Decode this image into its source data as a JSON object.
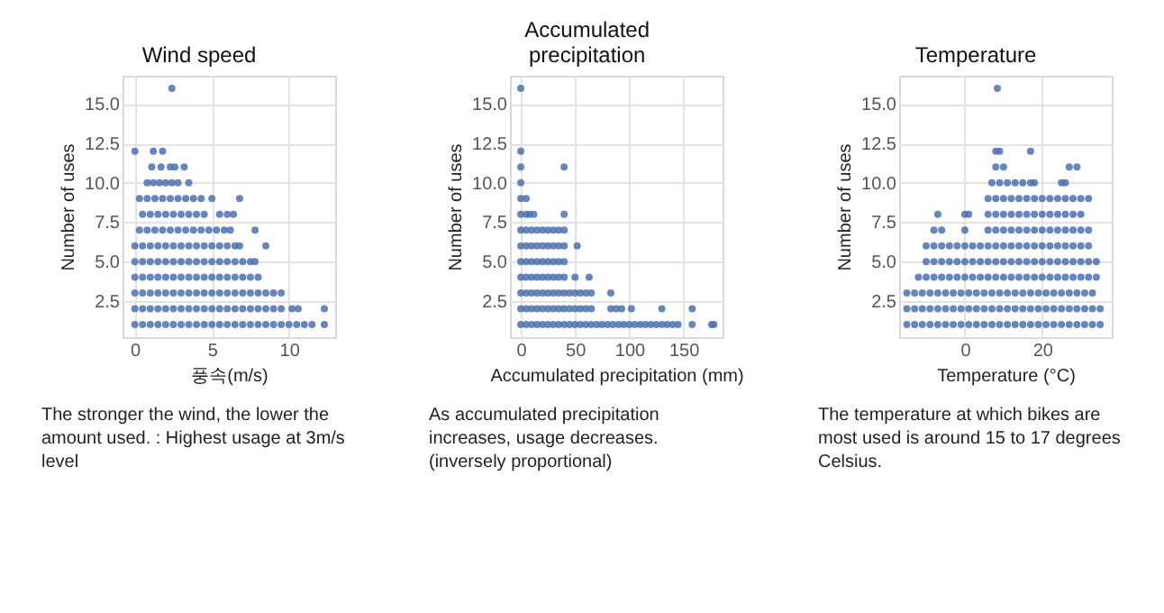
{
  "chart_data": [
    {
      "type": "scatter",
      "title": "Wind speed",
      "xlabel": "풍속(m/s)",
      "ylabel": "Number of uses",
      "color": "#4c72b0",
      "marker": "circle",
      "grid": true,
      "xlim": [
        -0.8,
        13
      ],
      "xticks": [
        0,
        5,
        10
      ],
      "ylim": [
        0.2,
        16.8
      ],
      "yticks": [
        {
          "value": 2.5,
          "label": "2.5"
        },
        {
          "value": 5,
          "label": "5.0"
        },
        {
          "value": 7.5,
          "label": "7.5"
        },
        {
          "value": 10,
          "label": "10.0"
        },
        {
          "value": 12.5,
          "label": "12.5"
        },
        {
          "value": 15,
          "label": "15.0"
        }
      ],
      "x": [
        0,
        0.5,
        1,
        1.5,
        2,
        2.5,
        3,
        3.5,
        4,
        4.5,
        5,
        5.5,
        6,
        6.5,
        7,
        7.5,
        8,
        8.5,
        9,
        9.5,
        10,
        10.5,
        11,
        11.5,
        12.3,
        0,
        0.5,
        1,
        1.5,
        2,
        2.5,
        3,
        3.5,
        4,
        4.5,
        5,
        5.5,
        6,
        6.5,
        7,
        7.5,
        8,
        8.5,
        9,
        9.5,
        10.2,
        10.6,
        12.3,
        0,
        0.5,
        1,
        1.5,
        2,
        2.5,
        3,
        3.5,
        4,
        4.5,
        5,
        5.5,
        6,
        6.5,
        7,
        7.5,
        8,
        8.5,
        9,
        9.5,
        0,
        0.5,
        1,
        1.5,
        2,
        2.5,
        3,
        3.5,
        4,
        4.5,
        5,
        5.5,
        6,
        6.5,
        7,
        7.5,
        8,
        0,
        0.5,
        1,
        1.5,
        2,
        2.5,
        3,
        3.5,
        4,
        4.5,
        5,
        5.5,
        6,
        6.5,
        7,
        7.5,
        7.8,
        0,
        0.5,
        1,
        1.5,
        2,
        2.5,
        3,
        3.5,
        4,
        4.5,
        5,
        5.5,
        6,
        6.5,
        6.8,
        8.5,
        0.3,
        0.8,
        1.3,
        1.8,
        2.3,
        2.8,
        3.3,
        3.8,
        4.3,
        4.8,
        5.3,
        5.8,
        6.2,
        7.8,
        0.5,
        1,
        1.5,
        2,
        2.5,
        3,
        3.5,
        4,
        4.5,
        5.5,
        6,
        6.4,
        0.3,
        0.8,
        1.3,
        1.8,
        2.3,
        2.8,
        3.3,
        3.8,
        4.3,
        5,
        6.8,
        0.8,
        1.2,
        1.6,
        2,
        2.4,
        2.8,
        3.5,
        1.1,
        1.7,
        2.3,
        2.6,
        3.2,
        0,
        1.2,
        1.8,
        2.4
      ],
      "values": [
        1,
        1,
        1,
        1,
        1,
        1,
        1,
        1,
        1,
        1,
        1,
        1,
        1,
        1,
        1,
        1,
        1,
        1,
        1,
        1,
        1,
        1,
        1,
        1,
        1,
        2,
        2,
        2,
        2,
        2,
        2,
        2,
        2,
        2,
        2,
        2,
        2,
        2,
        2,
        2,
        2,
        2,
        2,
        2,
        2,
        2,
        2,
        2,
        3,
        3,
        3,
        3,
        3,
        3,
        3,
        3,
        3,
        3,
        3,
        3,
        3,
        3,
        3,
        3,
        3,
        3,
        3,
        3,
        4,
        4,
        4,
        4,
        4,
        4,
        4,
        4,
        4,
        4,
        4,
        4,
        4,
        4,
        4,
        4,
        4,
        5,
        5,
        5,
        5,
        5,
        5,
        5,
        5,
        5,
        5,
        5,
        5,
        5,
        5,
        5,
        5,
        5,
        6,
        6,
        6,
        6,
        6,
        6,
        6,
        6,
        6,
        6,
        6,
        6,
        6,
        6,
        6,
        6,
        7,
        7,
        7,
        7,
        7,
        7,
        7,
        7,
        7,
        7,
        7,
        7,
        7,
        7,
        8,
        8,
        8,
        8,
        8,
        8,
        8,
        8,
        8,
        8,
        8,
        8,
        9,
        9,
        9,
        9,
        9,
        9,
        9,
        9,
        9,
        9,
        9,
        10,
        10,
        10,
        10,
        10,
        10,
        10,
        11,
        11,
        11,
        11,
        11,
        12,
        12,
        12,
        16
      ],
      "annotations": [
        "The stronger the wind, the lower the amount used. : Highest usage at 3m/s level"
      ]
    },
    {
      "type": "scatter",
      "title": "Accumulated precipitation",
      "xlabel": "Accumulated precipitation  (mm)",
      "ylabel": "Number of uses",
      "color": "#4c72b0",
      "marker": "circle",
      "grid": true,
      "xlim": [
        -10,
        186
      ],
      "xticks": [
        0,
        50,
        100,
        150
      ],
      "ylim": [
        0.2,
        16.8
      ],
      "yticks": [
        {
          "value": 2.5,
          "label": "2.5"
        },
        {
          "value": 5,
          "label": "5.0"
        },
        {
          "value": 7.5,
          "label": "7.5"
        },
        {
          "value": 10,
          "label": "10.0"
        },
        {
          "value": 12.5,
          "label": "12.5"
        },
        {
          "value": 15,
          "label": "15.0"
        }
      ],
      "x": [
        0,
        5,
        10,
        15,
        20,
        25,
        30,
        35,
        40,
        45,
        50,
        55,
        60,
        65,
        70,
        75,
        80,
        85,
        90,
        95,
        100,
        105,
        110,
        115,
        120,
        125,
        130,
        135,
        140,
        145,
        158,
        176,
        178,
        0,
        5,
        10,
        15,
        20,
        25,
        30,
        35,
        40,
        45,
        50,
        55,
        60,
        65,
        83,
        88,
        93,
        102,
        130,
        158,
        0,
        5,
        10,
        15,
        20,
        25,
        30,
        35,
        40,
        45,
        50,
        55,
        60,
        65,
        83,
        0,
        5,
        10,
        15,
        20,
        25,
        30,
        35,
        40,
        50,
        63,
        0,
        5,
        10,
        15,
        20,
        25,
        30,
        35,
        40,
        0,
        5,
        10,
        15,
        20,
        25,
        30,
        35,
        40,
        52,
        0,
        5,
        10,
        15,
        20,
        25,
        30,
        35,
        40,
        0,
        5,
        8,
        12,
        40,
        0,
        5,
        0,
        0,
        40,
        0,
        0
      ],
      "values": [
        1,
        1,
        1,
        1,
        1,
        1,
        1,
        1,
        1,
        1,
        1,
        1,
        1,
        1,
        1,
        1,
        1,
        1,
        1,
        1,
        1,
        1,
        1,
        1,
        1,
        1,
        1,
        1,
        1,
        1,
        1,
        1,
        1,
        2,
        2,
        2,
        2,
        2,
        2,
        2,
        2,
        2,
        2,
        2,
        2,
        2,
        2,
        2,
        2,
        2,
        2,
        2,
        2,
        3,
        3,
        3,
        3,
        3,
        3,
        3,
        3,
        3,
        3,
        3,
        3,
        3,
        3,
        3,
        4,
        4,
        4,
        4,
        4,
        4,
        4,
        4,
        4,
        4,
        4,
        5,
        5,
        5,
        5,
        5,
        5,
        5,
        5,
        5,
        6,
        6,
        6,
        6,
        6,
        6,
        6,
        6,
        6,
        6,
        7,
        7,
        7,
        7,
        7,
        7,
        7,
        7,
        7,
        8,
        8,
        8,
        8,
        8,
        9,
        9,
        10,
        11,
        11,
        12,
        16
      ],
      "annotations": [
        "As accumulated precipitation increases, usage decreases. (inversely proportional)"
      ]
    },
    {
      "type": "scatter",
      "title": "Temperature",
      "xlabel": "Temperature   (°C)",
      "ylabel": "Number of uses",
      "color": "#4c72b0",
      "marker": "circle",
      "grid": true,
      "xlim": [
        -17,
        38
      ],
      "xticks": [
        0,
        20
      ],
      "ylim": [
        0.2,
        16.8
      ],
      "yticks": [
        {
          "value": 2.5,
          "label": "2.5"
        },
        {
          "value": 5,
          "label": "5.0"
        },
        {
          "value": 7.5,
          "label": "7.5"
        },
        {
          "value": 10,
          "label": "10.0"
        },
        {
          "value": 12.5,
          "label": "12.5"
        },
        {
          "value": 15,
          "label": "15.0"
        }
      ],
      "x": [
        -15,
        -13,
        -11,
        -9,
        -7,
        -5,
        -3,
        -1,
        1,
        3,
        5,
        7,
        9,
        11,
        13,
        15,
        17,
        19,
        21,
        23,
        25,
        27,
        29,
        31,
        33,
        35,
        -15,
        -13,
        -11,
        -9,
        -7,
        -5,
        -3,
        -1,
        1,
        3,
        5,
        7,
        9,
        11,
        13,
        15,
        17,
        19,
        21,
        23,
        25,
        27,
        29,
        31,
        33,
        35,
        -15,
        -13,
        -11,
        -9,
        -7,
        -5,
        -3,
        -1,
        1,
        3,
        5,
        7,
        9,
        11,
        13,
        15,
        17,
        19,
        21,
        23,
        25,
        27,
        29,
        31,
        33,
        -12,
        -10,
        -8,
        -6,
        -4,
        -2,
        0,
        2,
        4,
        6,
        8,
        10,
        12,
        14,
        16,
        18,
        20,
        22,
        24,
        26,
        28,
        30,
        32,
        34,
        -10,
        -8,
        -6,
        -4,
        -2,
        0,
        2,
        4,
        6,
        8,
        10,
        12,
        14,
        16,
        18,
        20,
        22,
        24,
        26,
        28,
        30,
        32,
        34,
        -10,
        -8,
        -6,
        -4,
        -2,
        0,
        2,
        4,
        6,
        8,
        10,
        12,
        14,
        16,
        18,
        20,
        22,
        24,
        26,
        28,
        30,
        32,
        -8,
        -6,
        0,
        6,
        8,
        10,
        12,
        14,
        16,
        18,
        20,
        22,
        24,
        26,
        28,
        30,
        32,
        -7,
        0,
        1,
        6,
        8,
        10,
        12,
        14,
        16,
        18,
        20,
        22,
        24,
        26,
        28,
        30,
        6,
        8,
        10,
        12,
        14,
        16,
        18,
        20,
        22,
        24,
        26,
        28,
        30,
        32,
        7,
        9,
        11,
        13,
        15,
        17,
        18,
        25,
        26,
        8,
        10,
        27,
        29,
        8,
        9,
        17,
        8.4
      ],
      "values": [
        1,
        1,
        1,
        1,
        1,
        1,
        1,
        1,
        1,
        1,
        1,
        1,
        1,
        1,
        1,
        1,
        1,
        1,
        1,
        1,
        1,
        1,
        1,
        1,
        1,
        1,
        2,
        2,
        2,
        2,
        2,
        2,
        2,
        2,
        2,
        2,
        2,
        2,
        2,
        2,
        2,
        2,
        2,
        2,
        2,
        2,
        2,
        2,
        2,
        2,
        2,
        2,
        3,
        3,
        3,
        3,
        3,
        3,
        3,
        3,
        3,
        3,
        3,
        3,
        3,
        3,
        3,
        3,
        3,
        3,
        3,
        3,
        3,
        3,
        3,
        3,
        3,
        4,
        4,
        4,
        4,
        4,
        4,
        4,
        4,
        4,
        4,
        4,
        4,
        4,
        4,
        4,
        4,
        4,
        4,
        4,
        4,
        4,
        4,
        4,
        4,
        5,
        5,
        5,
        5,
        5,
        5,
        5,
        5,
        5,
        5,
        5,
        5,
        5,
        5,
        5,
        5,
        5,
        5,
        5,
        5,
        5,
        5,
        5,
        6,
        6,
        6,
        6,
        6,
        6,
        6,
        6,
        6,
        6,
        6,
        6,
        6,
        6,
        6,
        6,
        6,
        6,
        6,
        6,
        6,
        6,
        7,
        7,
        7,
        7,
        7,
        7,
        7,
        7,
        7,
        7,
        7,
        7,
        7,
        7,
        7,
        7,
        7,
        8,
        8,
        8,
        8,
        8,
        8,
        8,
        8,
        8,
        8,
        8,
        8,
        8,
        8,
        8,
        8,
        9,
        9,
        9,
        9,
        9,
        9,
        9,
        9,
        9,
        9,
        9,
        9,
        9,
        9,
        10,
        10,
        10,
        10,
        10,
        10,
        10,
        10,
        10,
        11,
        11,
        11,
        11,
        12,
        12,
        12,
        16
      ],
      "annotations": [
        "The temperature at which bikes are most used is around 15 to 17 degrees Celsius."
      ]
    }
  ]
}
